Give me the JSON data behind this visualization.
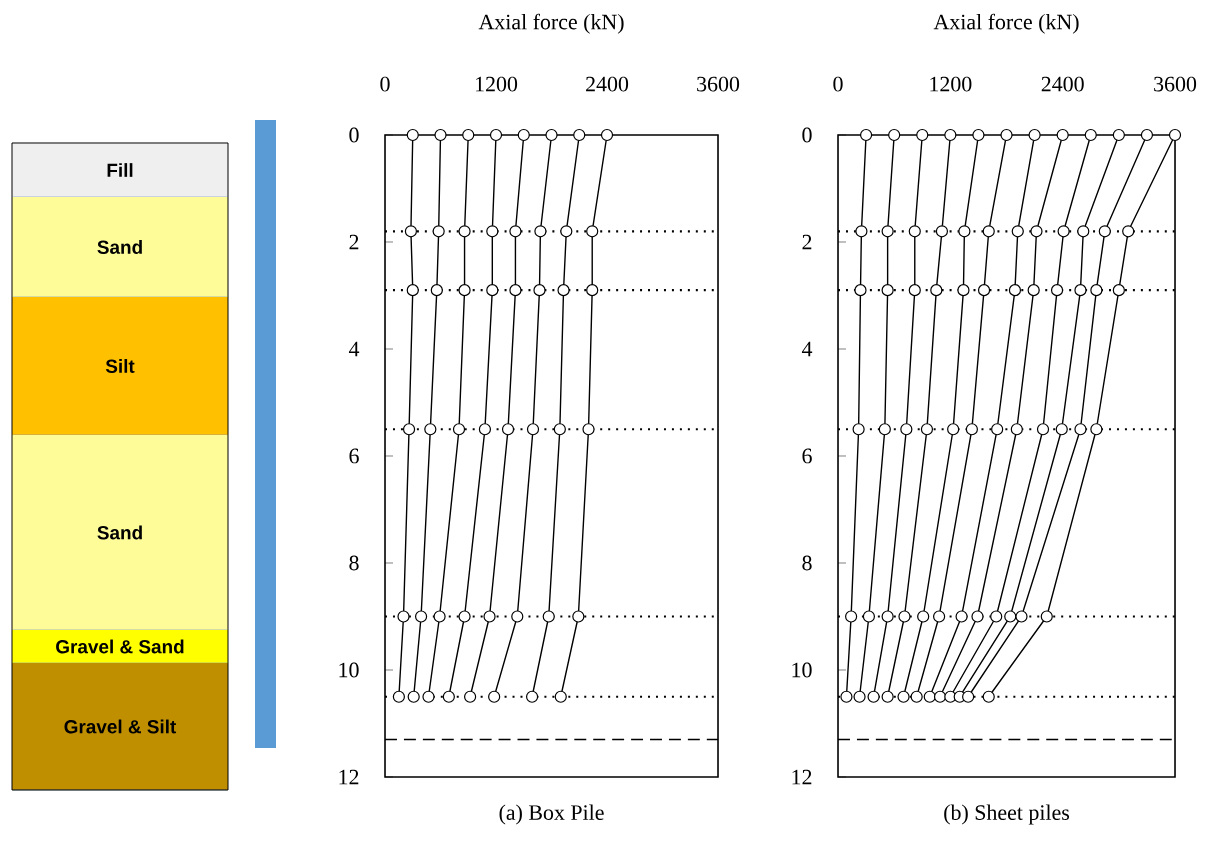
{
  "chart_data": [
    {
      "type": "other",
      "annotations": [
        "Fill",
        "Sand",
        "Silt",
        "Sand",
        "Gravel & Sand",
        "Gravel & Silt"
      ]
    },
    {
      "type": "line",
      "title": "(a) Box Pile",
      "xlabel": "Axial force (kN)",
      "xlim": [
        0,
        3600
      ],
      "xticks": [
        0,
        1200,
        2400,
        3600
      ],
      "ylim": [
        12,
        0
      ],
      "yticks": [
        0,
        2,
        4,
        6,
        8,
        10,
        12
      ],
      "marker": "circle",
      "grid": false,
      "ref_lines": [
        {
          "axis": "y",
          "value": 1.8,
          "line_style": "dotted",
          "color": "#000000"
        },
        {
          "axis": "y",
          "value": 2.9,
          "line_style": "dotted",
          "color": "#000000"
        },
        {
          "axis": "y",
          "value": 5.5,
          "line_style": "dotted",
          "color": "#000000"
        },
        {
          "axis": "y",
          "value": 9.0,
          "line_style": "dotted",
          "color": "#000000"
        },
        {
          "axis": "y",
          "value": 10.5,
          "line_style": "dotted",
          "color": "#000000"
        },
        {
          "axis": "y",
          "value": 11.3,
          "line_style": "dashed",
          "color": "#000000"
        }
      ],
      "series": [
        {
          "color": "#000000",
          "x": [
            300,
            280,
            300,
            260,
            200,
            150
          ],
          "values": [
            0,
            1.8,
            2.9,
            5.5,
            9.0,
            10.5
          ]
        },
        {
          "color": "#000000",
          "x": [
            600,
            580,
            560,
            490,
            390,
            310
          ],
          "values": [
            0,
            1.8,
            2.9,
            5.5,
            9.0,
            10.5
          ]
        },
        {
          "color": "#000000",
          "x": [
            900,
            860,
            860,
            800,
            590,
            470
          ],
          "values": [
            0,
            1.8,
            2.9,
            5.5,
            9.0,
            10.5
          ]
        },
        {
          "color": "#000000",
          "x": [
            1200,
            1160,
            1160,
            1080,
            860,
            690
          ],
          "values": [
            0,
            1.8,
            2.9,
            5.5,
            9.0,
            10.5
          ]
        },
        {
          "color": "#000000",
          "x": [
            1500,
            1410,
            1410,
            1330,
            1130,
            920
          ],
          "values": [
            0,
            1.8,
            2.9,
            5.5,
            9.0,
            10.5
          ]
        },
        {
          "color": "#000000",
          "x": [
            1800,
            1680,
            1670,
            1600,
            1430,
            1180
          ],
          "values": [
            0,
            1.8,
            2.9,
            5.5,
            9.0,
            10.5
          ]
        },
        {
          "color": "#000000",
          "x": [
            2100,
            1960,
            1930,
            1890,
            1770,
            1590
          ],
          "values": [
            0,
            1.8,
            2.9,
            5.5,
            9.0,
            10.5
          ]
        },
        {
          "color": "#000000",
          "x": [
            2400,
            2240,
            2240,
            2200,
            2090,
            1900
          ],
          "values": [
            0,
            1.8,
            2.9,
            5.5,
            9.0,
            10.5
          ]
        }
      ]
    },
    {
      "type": "line",
      "title": "(b) Sheet piles",
      "xlabel": "Axial force (kN)",
      "xlim": [
        0,
        3600
      ],
      "xticks": [
        0,
        1200,
        2400,
        3600
      ],
      "ylim": [
        12,
        0
      ],
      "yticks": [
        0,
        2,
        4,
        6,
        8,
        10,
        12
      ],
      "marker": "circle",
      "grid": false,
      "ref_lines": [
        {
          "axis": "y",
          "value": 1.8,
          "line_style": "dotted",
          "color": "#000000"
        },
        {
          "axis": "y",
          "value": 2.9,
          "line_style": "dotted",
          "color": "#000000"
        },
        {
          "axis": "y",
          "value": 5.5,
          "line_style": "dotted",
          "color": "#000000"
        },
        {
          "axis": "y",
          "value": 9.0,
          "line_style": "dotted",
          "color": "#000000"
        },
        {
          "axis": "y",
          "value": 10.5,
          "line_style": "dotted",
          "color": "#000000"
        },
        {
          "axis": "y",
          "value": 11.3,
          "line_style": "dashed",
          "color": "#000000"
        }
      ],
      "series": [
        {
          "color": "#000000",
          "x": [
            300,
            250,
            240,
            220,
            140,
            90
          ],
          "values": [
            0,
            1.8,
            2.9,
            5.5,
            9.0,
            10.5
          ]
        },
        {
          "color": "#000000",
          "x": [
            600,
            530,
            530,
            500,
            330,
            230
          ],
          "values": [
            0,
            1.8,
            2.9,
            5.5,
            9.0,
            10.5
          ]
        },
        {
          "color": "#000000",
          "x": [
            900,
            820,
            820,
            730,
            530,
            380
          ],
          "values": [
            0,
            1.8,
            2.9,
            5.5,
            9.0,
            10.5
          ]
        },
        {
          "color": "#000000",
          "x": [
            1200,
            1110,
            1050,
            950,
            710,
            530
          ],
          "values": [
            0,
            1.8,
            2.9,
            5.5,
            9.0,
            10.5
          ]
        },
        {
          "color": "#000000",
          "x": [
            1500,
            1350,
            1340,
            1230,
            910,
            700
          ],
          "values": [
            0,
            1.8,
            2.9,
            5.5,
            9.0,
            10.5
          ]
        },
        {
          "color": "#000000",
          "x": [
            1800,
            1610,
            1560,
            1430,
            1080,
            840
          ],
          "values": [
            0,
            1.8,
            2.9,
            5.5,
            9.0,
            10.5
          ]
        },
        {
          "color": "#000000",
          "x": [
            2100,
            1920,
            1890,
            1700,
            1320,
            980
          ],
          "values": [
            0,
            1.8,
            2.9,
            5.5,
            9.0,
            10.5
          ]
        },
        {
          "color": "#000000",
          "x": [
            2400,
            2120,
            2090,
            1910,
            1490,
            1090
          ],
          "values": [
            0,
            1.8,
            2.9,
            5.5,
            9.0,
            10.5
          ]
        },
        {
          "color": "#000000",
          "x": [
            2700,
            2410,
            2340,
            2190,
            1690,
            1200
          ],
          "values": [
            0,
            1.8,
            2.9,
            5.5,
            9.0,
            10.5
          ]
        },
        {
          "color": "#000000",
          "x": [
            3000,
            2620,
            2590,
            2390,
            1840,
            1300
          ],
          "values": [
            0,
            1.8,
            2.9,
            5.5,
            9.0,
            10.5
          ]
        },
        {
          "color": "#000000",
          "x": [
            3300,
            2850,
            2760,
            2590,
            1960,
            1390
          ],
          "values": [
            0,
            1.8,
            2.9,
            5.5,
            9.0,
            10.5
          ]
        },
        {
          "color": "#000000",
          "x": [
            3600,
            3100,
            3000,
            2760,
            2230,
            1610
          ],
          "values": [
            0,
            1.8,
            2.9,
            5.5,
            9.0,
            10.5
          ]
        }
      ]
    }
  ]
}
